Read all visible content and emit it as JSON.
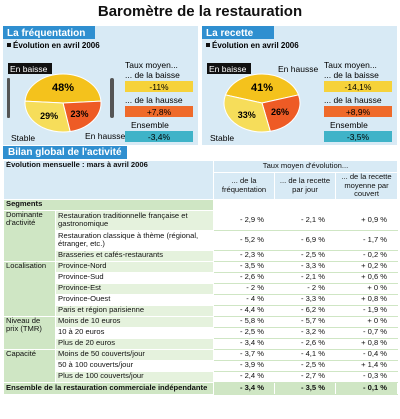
{
  "title": "Baromètre de la restauration",
  "panels": [
    {
      "title": "La fréquentation",
      "subtitle": "Évolution en avril 2006",
      "pie": {
        "labels": [
          "En baisse",
          "En hausse",
          "Stable"
        ],
        "values": [
          48,
          23,
          29
        ],
        "value_labels": [
          "48%",
          "23%",
          "29%"
        ],
        "colors": [
          "#f4c21c",
          "#ee5b25",
          "#f6dd5a"
        ]
      },
      "stats_title": "Taux moyen...",
      "stats": [
        {
          "label": "... de la baisse",
          "value": "-11%",
          "color": "#f6d23a"
        },
        {
          "label": "... de la hausse",
          "value": "+7,8%",
          "color": "#ef6a2a"
        },
        {
          "label": "Ensemble",
          "value": "-3,4%",
          "color": "#3fb3c8"
        }
      ]
    },
    {
      "title": "La recette",
      "subtitle": "Évolution en avril 2006",
      "pie": {
        "labels": [
          "En baisse",
          "En hausse",
          "Stable"
        ],
        "values": [
          41,
          26,
          33
        ],
        "value_labels": [
          "41%",
          "26%",
          "33%"
        ],
        "colors": [
          "#f4c21c",
          "#ee5b25",
          "#f6dd5a"
        ]
      },
      "stats_title": "Taux moyen...",
      "stats": [
        {
          "label": "... de la baisse",
          "value": "-14,1%",
          "color": "#f6d23a"
        },
        {
          "label": "... de la hausse",
          "value": "+8,9%",
          "color": "#ef6a2a"
        },
        {
          "label": "Ensemble",
          "value": "-3,5%",
          "color": "#3fb3c8"
        }
      ]
    }
  ],
  "table": {
    "title": "Bilan global de l'activité",
    "caption": "Évolution mensuelle : mars à avril 2006",
    "group_header": "Taux moyen d'évolution...",
    "columns": [
      "Segments",
      "... de la fréquentation",
      "... de la recette par jour",
      "... de la recette moyenne par couvert"
    ],
    "groups": [
      {
        "name": "Dominante d'activité",
        "rows": [
          [
            "Restauration traditionnelle française et gastronomique",
            "- 2,9 %",
            "- 2,1 %",
            "+ 0,9 %"
          ],
          [
            "Restauration classique à thème (régional, étranger, etc.)",
            "- 5,2 %",
            "- 6,9 %",
            "- 1,7 %"
          ],
          [
            "Brasseries et cafés-restaurants",
            "- 2,3 %",
            "- 2,5 %",
            "- 0,2 %"
          ]
        ]
      },
      {
        "name": "Localisation",
        "rows": [
          [
            "Province-Nord",
            "- 3,5 %",
            "- 3,3 %",
            "+ 0,2 %"
          ],
          [
            "Province-Sud",
            "- 2,6 %",
            "- 2,1 %",
            "+ 0,6 %"
          ],
          [
            "Province-Est",
            "- 2 %",
            "- 2 %",
            "+ 0 %"
          ],
          [
            "Province-Ouest",
            "- 4 %",
            "- 3,3 %",
            "+ 0,8 %"
          ],
          [
            "Paris et région parisienne",
            "- 4,4 %",
            "- 6,2 %",
            "- 1,9 %"
          ]
        ]
      },
      {
        "name": "Niveau de prix (TMR)",
        "rows": [
          [
            "Moins de 10 euros",
            "- 5,8 %",
            "- 5,7 %",
            "+ 0 %"
          ],
          [
            "10 à 20 euros",
            "- 2,5 %",
            "- 3,2 %",
            "- 0,7 %"
          ],
          [
            "Plus de 20 euros",
            "- 3,4 %",
            "- 2,6 %",
            "+ 0,8 %"
          ]
        ]
      },
      {
        "name": "Capacité",
        "rows": [
          [
            "Moins de 50 couverts/jour",
            "- 3,7 %",
            "- 4,1 %",
            "- 0,4 %"
          ],
          [
            "50 à 100 couverts/jour",
            "- 3,9 %",
            "- 2,5 %",
            "+ 1,4 %"
          ],
          [
            "Plus de 100 couverts/jour",
            "- 2,4 %",
            "- 2,7 %",
            "- 0,3 %"
          ]
        ]
      }
    ],
    "total": [
      "Ensemble de la restauration commerciale indépendante",
      "- 3,4 %",
      "- 3,5 %",
      "- 0,1 %"
    ]
  }
}
